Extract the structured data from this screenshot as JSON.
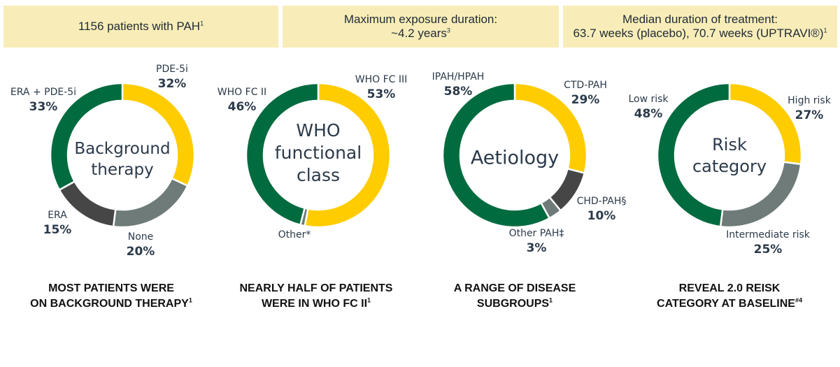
{
  "banners": [
    {
      "line1": "1156 patients with PAH",
      "sup": "1"
    },
    {
      "line1": "Maximum exposure duration:",
      "line2": "~4.2 years",
      "sup": "3"
    },
    {
      "line1": "Median duration of treatment:",
      "line2": "63.7 weeks (placebo), 70.7 weeks (UPTRAVI®)",
      "sup": "1"
    }
  ],
  "colors": {
    "green": "#006b3f",
    "yellow": "#ffcc00",
    "dark_gray": "#464646",
    "mid_gray": "#6e7b78"
  },
  "chart_data": [
    {
      "type": "pie",
      "center_label": [
        "Background",
        "therapy"
      ],
      "slices": [
        {
          "label": "PDE-5i",
          "value": 32,
          "display": "32%",
          "color": "yellow"
        },
        {
          "label": "None",
          "value": 20,
          "display": "20%",
          "color": "mid_gray"
        },
        {
          "label": "ERA",
          "value": 15,
          "display": "15%",
          "color": "dark_gray"
        },
        {
          "label": "ERA + PDE-5i",
          "value": 33,
          "display": "33%",
          "color": "green"
        }
      ],
      "caption": [
        "MOST PATIENTS WERE",
        "ON BACKGROUND THERAPY"
      ],
      "caption_sup": "1"
    },
    {
      "type": "pie",
      "center_label": [
        "WHO",
        "functional",
        "class"
      ],
      "slices": [
        {
          "label": "WHO FC III",
          "value": 53,
          "display": "53%",
          "color": "yellow"
        },
        {
          "label": "Other*",
          "value": 1,
          "display": "",
          "color": "mid_gray"
        },
        {
          "label": "WHO FC II",
          "value": 46,
          "display": "46%",
          "color": "green"
        }
      ],
      "caption": [
        "NEARLY HALF OF PATIENTS",
        "WERE IN WHO FC II"
      ],
      "caption_sup": "1"
    },
    {
      "type": "pie",
      "center_label": [
        "Aetiology"
      ],
      "slices": [
        {
          "label": "CTD-PAH",
          "value": 29,
          "display": "29%",
          "color": "yellow"
        },
        {
          "label": "CHD-PAH§",
          "value": 10,
          "display": "10%",
          "color": "dark_gray"
        },
        {
          "label": "Other PAH‡",
          "value": 3,
          "display": "3%",
          "color": "mid_gray"
        },
        {
          "label": "IPAH/HPAH",
          "value": 58,
          "display": "58%",
          "color": "green"
        }
      ],
      "caption": [
        "A RANGE OF DISEASE",
        "SUBGROUPS"
      ],
      "caption_sup": "1"
    },
    {
      "type": "pie",
      "center_label": [
        "Risk",
        "category"
      ],
      "slices": [
        {
          "label": "High risk",
          "value": 27,
          "display": "27%",
          "color": "yellow"
        },
        {
          "label": "Intermediate risk",
          "value": 25,
          "display": "25%",
          "color": "mid_gray"
        },
        {
          "label": "Low risk",
          "value": 48,
          "display": "48%",
          "color": "green"
        }
      ],
      "caption": [
        "REVEAL 2.0 REISK",
        "CATEGORY AT BASELINE"
      ],
      "caption_sup": "#4"
    }
  ]
}
